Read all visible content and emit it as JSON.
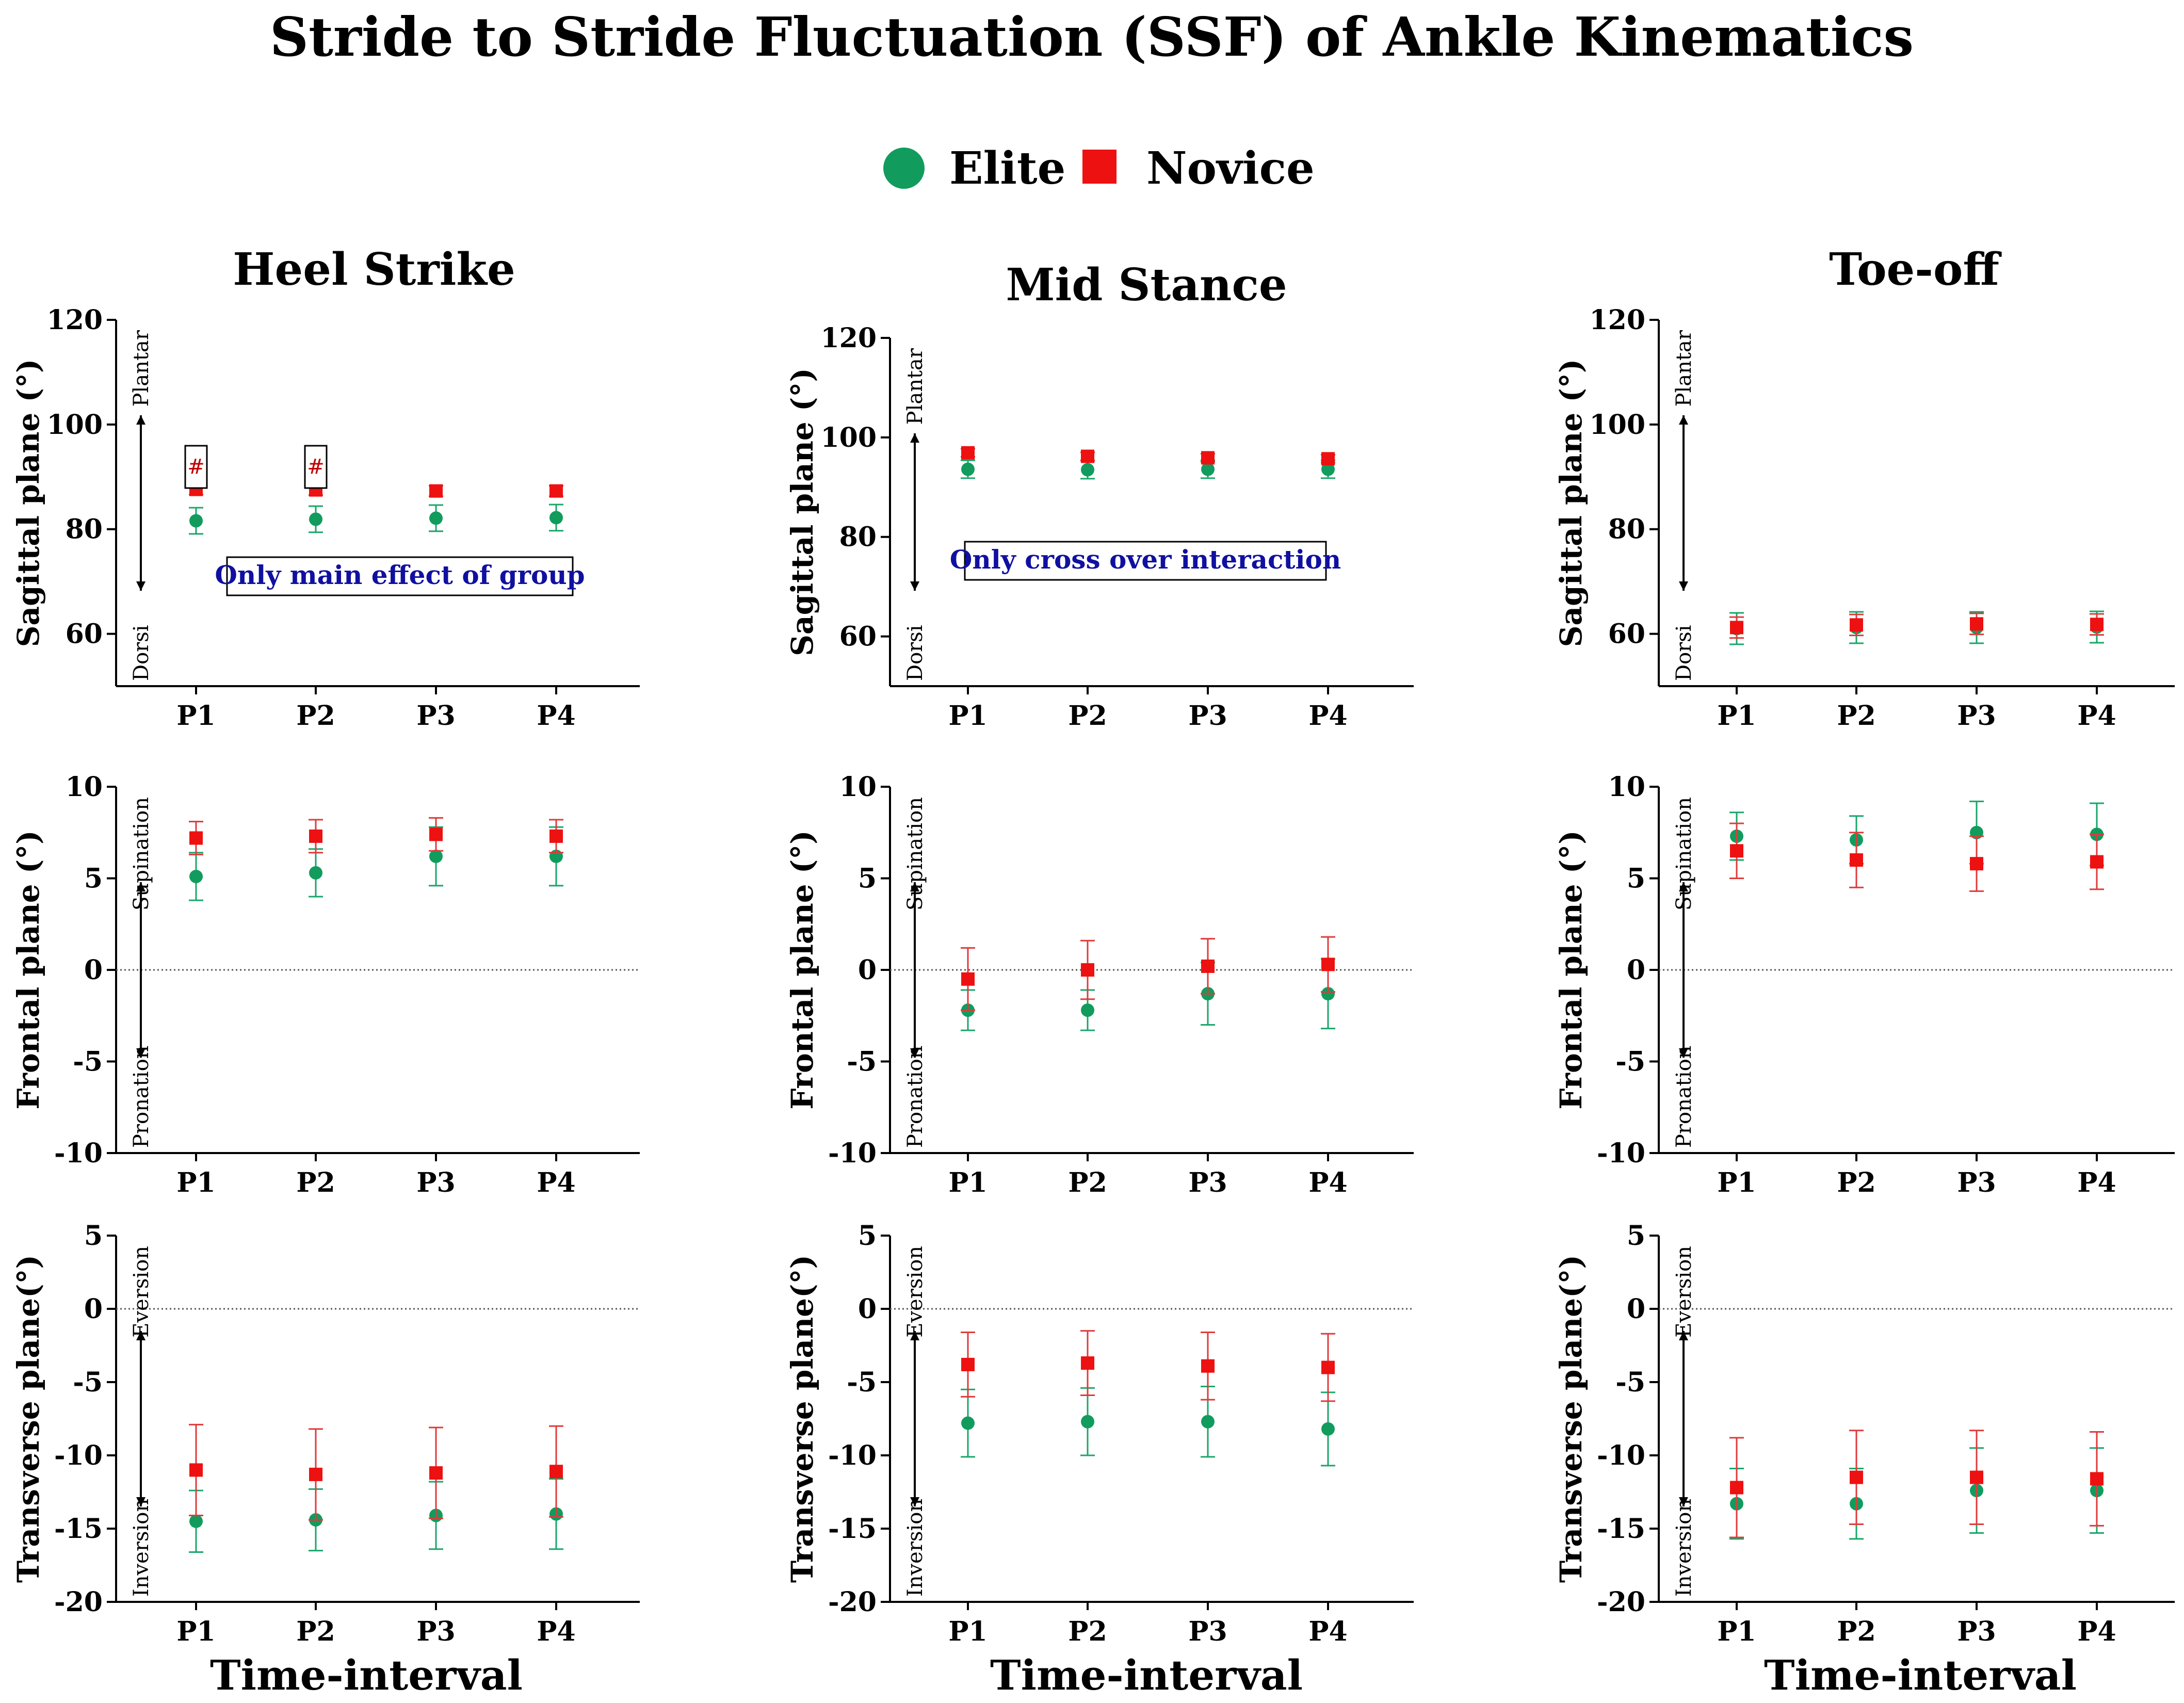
{
  "figure": {
    "title": "Stride to Stride Fluctuation (SSF) of Ankle Kinematics",
    "x_axis_label": "Time-interval",
    "columns": [
      "Heel Strike",
      "Mid Stance",
      "Toe-off"
    ],
    "legend": [
      {
        "name": "Elite",
        "marker": "circle",
        "color": "#119c5e"
      },
      {
        "name": "Novice",
        "marker": "square",
        "color": "#ee1111"
      }
    ],
    "colors": {
      "elite": "#119c5e",
      "elite_err": "#1aa66a",
      "novice": "#ee1111",
      "novice_err": "#e03a3a"
    }
  },
  "chart_data": [
    {
      "type": "scatter",
      "row": 0,
      "col": 0,
      "column_title": "Heel Strike",
      "ylabel": "Sagittal plane (°)",
      "ylim": [
        50,
        120
      ],
      "yticks": [
        60,
        80,
        100,
        120
      ],
      "categories": [
        "P1",
        "P2",
        "P3",
        "P4"
      ],
      "direction_labels": {
        "top": "Plantar",
        "bottom": "Dorsi"
      },
      "zero_line": false,
      "annotation": "Only main effect of group",
      "markers": [
        {
          "category": "P1",
          "text": "#"
        },
        {
          "category": "P2",
          "text": "#"
        }
      ],
      "series": [
        {
          "name": "Elite",
          "values": [
            81.6,
            81.9,
            82.1,
            82.2
          ],
          "errors": [
            2.5,
            2.5,
            2.5,
            2.5
          ]
        },
        {
          "name": "Novice",
          "values": [
            87.6,
            87.5,
            87.3,
            87.3
          ],
          "errors": [
            1.0,
            1.0,
            1.0,
            1.0
          ]
        }
      ]
    },
    {
      "type": "scatter",
      "row": 0,
      "col": 1,
      "column_title": "Mid Stance",
      "ylabel": "Sagittal plane (°)",
      "ylim": [
        50,
        120
      ],
      "yticks": [
        60,
        80,
        100,
        120
      ],
      "categories": [
        "P1",
        "P2",
        "P3",
        "P4"
      ],
      "direction_labels": {
        "top": "Plantar",
        "bottom": "Dorsi"
      },
      "zero_line": false,
      "annotation": "Only cross over interaction",
      "series": [
        {
          "name": "Elite",
          "values": [
            93.6,
            93.5,
            93.6,
            93.6
          ],
          "errors": [
            1.8,
            1.8,
            1.8,
            1.8
          ]
        },
        {
          "name": "Novice",
          "values": [
            96.9,
            96.2,
            95.9,
            95.7
          ],
          "errors": [
            0.8,
            0.8,
            0.8,
            0.8
          ]
        }
      ]
    },
    {
      "type": "scatter",
      "row": 0,
      "col": 2,
      "column_title": "Toe-off",
      "ylabel": "Sagittal plane (°)",
      "ylim": [
        50,
        120
      ],
      "yticks": [
        60,
        80,
        100,
        120
      ],
      "categories": [
        "P1",
        "P2",
        "P3",
        "P4"
      ],
      "direction_labels": {
        "top": "Plantar",
        "bottom": "Dorsi"
      },
      "zero_line": false,
      "series": [
        {
          "name": "Elite",
          "values": [
            61.0,
            61.2,
            61.2,
            61.3
          ],
          "errors": [
            3.0,
            3.0,
            3.0,
            3.0
          ]
        },
        {
          "name": "Novice",
          "values": [
            61.2,
            61.7,
            61.9,
            61.8
          ],
          "errors": [
            2.0,
            2.0,
            2.0,
            2.0
          ]
        }
      ]
    },
    {
      "type": "scatter",
      "row": 1,
      "col": 0,
      "ylabel": "Frontal plane (°)",
      "ylim": [
        -10,
        10
      ],
      "yticks": [
        -10,
        -5,
        0,
        5,
        10
      ],
      "categories": [
        "P1",
        "P2",
        "P3",
        "P4"
      ],
      "direction_labels": {
        "top": "Supination",
        "bottom": "Pronation"
      },
      "zero_line": true,
      "series": [
        {
          "name": "Elite",
          "values": [
            5.1,
            5.3,
            6.2,
            6.2
          ],
          "errors": [
            1.3,
            1.3,
            1.6,
            1.6
          ]
        },
        {
          "name": "Novice",
          "values": [
            7.2,
            7.3,
            7.4,
            7.3
          ],
          "errors": [
            0.9,
            0.9,
            0.9,
            0.9
          ]
        }
      ]
    },
    {
      "type": "scatter",
      "row": 1,
      "col": 1,
      "ylabel": "Frontal plane (°)",
      "ylim": [
        -10,
        10
      ],
      "yticks": [
        -10,
        -5,
        0,
        5,
        10
      ],
      "categories": [
        "P1",
        "P2",
        "P3",
        "P4"
      ],
      "direction_labels": {
        "top": "Supination",
        "bottom": "Pronation"
      },
      "zero_line": true,
      "series": [
        {
          "name": "Elite",
          "values": [
            -2.2,
            -2.2,
            -1.3,
            -1.3
          ],
          "errors": [
            1.1,
            1.1,
            1.7,
            1.9
          ]
        },
        {
          "name": "Novice",
          "values": [
            -0.5,
            0.0,
            0.2,
            0.3
          ],
          "errors": [
            1.7,
            1.6,
            1.5,
            1.5
          ]
        }
      ]
    },
    {
      "type": "scatter",
      "row": 1,
      "col": 2,
      "ylabel": "Frontal plane (°)",
      "ylim": [
        -10,
        10
      ],
      "yticks": [
        -10,
        -5,
        0,
        5,
        10
      ],
      "categories": [
        "P1",
        "P2",
        "P3",
        "P4"
      ],
      "direction_labels": {
        "top": "Supination",
        "bottom": "Pronation"
      },
      "zero_line": true,
      "series": [
        {
          "name": "Elite",
          "values": [
            7.3,
            7.1,
            7.5,
            7.4
          ],
          "errors": [
            1.3,
            1.3,
            1.7,
            1.7
          ]
        },
        {
          "name": "Novice",
          "values": [
            6.5,
            6.0,
            5.8,
            5.9
          ],
          "errors": [
            1.5,
            1.5,
            1.5,
            1.5
          ]
        }
      ]
    },
    {
      "type": "scatter",
      "row": 2,
      "col": 0,
      "ylabel": "Transverse plane(°)",
      "ylim": [
        -20,
        5
      ],
      "yticks": [
        -20,
        -15,
        -10,
        -5,
        0,
        5
      ],
      "categories": [
        "P1",
        "P2",
        "P3",
        "P4"
      ],
      "direction_labels": {
        "top": "Eversion",
        "bottom": "Inversion"
      },
      "zero_line": true,
      "series": [
        {
          "name": "Elite",
          "values": [
            -14.5,
            -14.4,
            -14.1,
            -14.0
          ],
          "errors": [
            2.1,
            2.1,
            2.3,
            2.4
          ]
        },
        {
          "name": "Novice",
          "values": [
            -11.0,
            -11.3,
            -11.2,
            -11.1
          ],
          "errors": [
            3.1,
            3.1,
            3.1,
            3.1
          ]
        }
      ]
    },
    {
      "type": "scatter",
      "row": 2,
      "col": 1,
      "ylabel": "Transverse plane(°)",
      "ylim": [
        -20,
        5
      ],
      "yticks": [
        -20,
        -15,
        -10,
        -5,
        0,
        5
      ],
      "categories": [
        "P1",
        "P2",
        "P3",
        "P4"
      ],
      "direction_labels": {
        "top": "Eversion",
        "bottom": "Inversion"
      },
      "zero_line": true,
      "series": [
        {
          "name": "Elite",
          "values": [
            -7.8,
            -7.7,
            -7.7,
            -8.2
          ],
          "errors": [
            2.3,
            2.3,
            2.4,
            2.5
          ]
        },
        {
          "name": "Novice",
          "values": [
            -3.8,
            -3.7,
            -3.9,
            -4.0
          ],
          "errors": [
            2.2,
            2.2,
            2.3,
            2.3
          ]
        }
      ]
    },
    {
      "type": "scatter",
      "row": 2,
      "col": 2,
      "ylabel": "Transverse plane(°)",
      "ylim": [
        -20,
        5
      ],
      "yticks": [
        -20,
        -15,
        -10,
        -5,
        0,
        5
      ],
      "categories": [
        "P1",
        "P2",
        "P3",
        "P4"
      ],
      "direction_labels": {
        "top": "Eversion",
        "bottom": "Inversion"
      },
      "zero_line": true,
      "series": [
        {
          "name": "Elite",
          "values": [
            -13.3,
            -13.3,
            -12.4,
            -12.4
          ],
          "errors": [
            2.4,
            2.4,
            2.9,
            2.9
          ]
        },
        {
          "name": "Novice",
          "values": [
            -12.2,
            -11.5,
            -11.5,
            -11.6
          ],
          "errors": [
            3.4,
            3.2,
            3.2,
            3.2
          ]
        }
      ]
    }
  ]
}
